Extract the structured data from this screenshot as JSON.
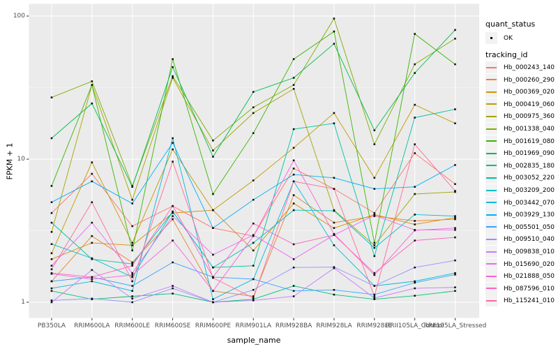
{
  "chart_data": {
    "type": "line",
    "title": "",
    "xlabel": "sample_name",
    "ylabel": "FPKM + 1",
    "y_scale": "log10",
    "ylim": [
      1,
      100
    ],
    "y_ticks": [
      "1",
      "10",
      "100"
    ],
    "grid": true,
    "legend_position": "right",
    "categories": [
      "PB350LA",
      "RRIM600LA",
      "RRIM600LE",
      "RRIM600SE",
      "RRIM600PE",
      "RRIM901LA",
      "RRIM928BA",
      "RRIM928LA",
      "RRIM928LE",
      "RRII105LA_Control",
      "RRII105LA_Stressed"
    ],
    "legend": {
      "quant_status": {
        "title": "quant_status",
        "items": [
          {
            "label": "OK",
            "symbol": "point"
          }
        ]
      },
      "tracking_id": {
        "title": "tracking_id"
      }
    },
    "series": [
      {
        "name": "Hb_000243_140",
        "color": "#F8766D",
        "values": [
          4.2,
          7.9,
          3.4,
          4.7,
          3.3,
          2.9,
          8.6,
          6.2,
          4.2,
          11.0,
          6.7
        ]
      },
      {
        "name": "Hb_000260_290",
        "color": "#EA8331",
        "values": [
          1.4,
          2.9,
          1.9,
          3.8,
          1.2,
          1.1,
          5.6,
          3.6,
          4.0,
          3.7,
          3.8
        ]
      },
      {
        "name": "Hb_000369_020",
        "color": "#D89000",
        "values": [
          2.0,
          2.6,
          2.5,
          4.2,
          4.4,
          2.3,
          4.9,
          3.3,
          4.1,
          3.5,
          3.9
        ]
      },
      {
        "name": "Hb_000419_060",
        "color": "#C09B00",
        "values": [
          2.2,
          9.5,
          2.6,
          11.7,
          4.4,
          7.1,
          12.0,
          21.0,
          7.4,
          24.0,
          17.8
        ]
      },
      {
        "name": "Hb_000975_360",
        "color": "#A3A500",
        "values": [
          3.1,
          33.0,
          5.2,
          37.0,
          11.5,
          21.0,
          31.0,
          4.4,
          2.5,
          5.7,
          5.9
        ]
      },
      {
        "name": "Hb_001338_040",
        "color": "#7CAE00",
        "values": [
          27.0,
          35.0,
          6.5,
          38.0,
          13.5,
          23.0,
          33.0,
          96.0,
          12.7,
          46.0,
          69.5
        ]
      },
      {
        "name": "Hb_001619_080",
        "color": "#39B600",
        "values": [
          6.5,
          33.0,
          2.3,
          50.0,
          5.7,
          15.2,
          50.0,
          78.0,
          2.6,
          75.0,
          46.0
        ]
      },
      {
        "name": "Hb_001969_090",
        "color": "#00BB4E",
        "values": [
          14.0,
          24.5,
          6.4,
          44.0,
          10.4,
          29.5,
          37.0,
          64.0,
          15.9,
          40.0,
          80.0
        ]
      },
      {
        "name": "Hb_002835_180",
        "color": "#00BF7D",
        "values": [
          1.2,
          1.05,
          1.1,
          1.15,
          1.0,
          1.05,
          1.3,
          1.13,
          1.05,
          1.11,
          1.2
        ]
      },
      {
        "name": "Hb_003052_220",
        "color": "#00C1A3",
        "values": [
          3.6,
          2.0,
          1.85,
          4.3,
          1.75,
          1.8,
          16.2,
          17.8,
          2.1,
          19.5,
          22.3
        ]
      },
      {
        "name": "Hb_003209_200",
        "color": "#00BFC4",
        "values": [
          2.55,
          2.03,
          1.5,
          4.3,
          1.75,
          2.6,
          4.4,
          4.35,
          2.4,
          4.1,
          4.0
        ]
      },
      {
        "name": "Hb_003442_070",
        "color": "#00BADE",
        "values": [
          1.25,
          1.4,
          1.2,
          14.0,
          1.05,
          1.45,
          7.0,
          2.5,
          1.3,
          1.4,
          1.6
        ]
      },
      {
        "name": "Hb_003929_130",
        "color": "#00B0F6",
        "values": [
          5.0,
          7.0,
          4.9,
          13.0,
          3.3,
          5.2,
          7.8,
          7.4,
          6.2,
          6.4,
          9.1
        ]
      },
      {
        "name": "Hb_005501_050",
        "color": "#35A2FF",
        "values": [
          1.4,
          1.5,
          1.3,
          1.9,
          1.5,
          1.45,
          1.2,
          1.22,
          1.13,
          1.37,
          1.56
        ]
      },
      {
        "name": "Hb_009510_040",
        "color": "#9590FF",
        "values": [
          1.03,
          1.06,
          1.0,
          1.25,
          1.0,
          1.22,
          1.75,
          1.76,
          1.3,
          1.75,
          1.96
        ]
      },
      {
        "name": "Hb_009838_010",
        "color": "#C77CFF",
        "values": [
          1.0,
          1.68,
          1.06,
          1.3,
          1.0,
          1.03,
          1.1,
          1.73,
          1.07,
          1.25,
          1.27
        ]
      },
      {
        "name": "Hb_015690_020",
        "color": "#E76BF3",
        "values": [
          1.8,
          3.6,
          1.6,
          4.0,
          2.15,
          2.95,
          2.0,
          2.95,
          4.05,
          3.2,
          3.2
        ]
      },
      {
        "name": "Hb_021888_050",
        "color": "#FA62DB",
        "values": [
          1.58,
          1.45,
          1.55,
          2.7,
          1.2,
          2.9,
          9.8,
          3.0,
          1.55,
          3.18,
          3.3
        ]
      },
      {
        "name": "Hb_087596_010",
        "color": "#FF62BC",
        "values": [
          1.6,
          1.5,
          1.8,
          4.7,
          1.5,
          3.55,
          2.54,
          2.95,
          1.6,
          2.7,
          2.84
        ]
      },
      {
        "name": "Hb_115241_010",
        "color": "#FF6A98",
        "values": [
          1.7,
          5.0,
          1.4,
          9.6,
          1.48,
          1.07,
          7.0,
          6.2,
          1.1,
          12.7,
          6.0
        ]
      }
    ],
    "style": {
      "panel_bg": "#EBEBEB",
      "grid_major": "#FFFFFF",
      "grid_minor": "#F4F4F4",
      "point_color": "#111111",
      "axis_text": "#4D4D4D",
      "title_color": "#000000",
      "legend_key_bg": "#F2F2F2"
    }
  }
}
